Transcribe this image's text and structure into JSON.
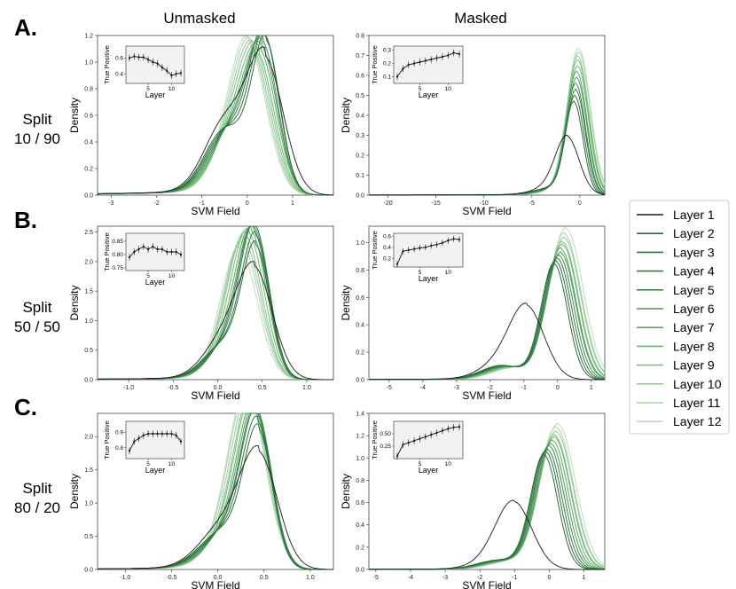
{
  "figure": {
    "col_titles": [
      "Unmasked",
      "Masked"
    ],
    "row_letters": [
      "A.",
      "B.",
      "C."
    ],
    "row_split_word": "Split",
    "row_ratios": [
      "10 / 90",
      "50 / 50",
      "80 / 20"
    ]
  },
  "legend": {
    "entries": [
      "Layer 1",
      "Layer 2",
      "Layer 3",
      "Layer 4",
      "Layer 5",
      "Layer 6",
      "Layer 7",
      "Layer 8",
      "Layer 9",
      "Layer 10",
      "Layer 11",
      "Layer 12"
    ],
    "colors": [
      "#1a1a1a",
      "#2d6a3e",
      "#2f7241",
      "#357a45",
      "#3d8a4c",
      "#4a9956",
      "#5aa862",
      "#6cb471",
      "#80bf84",
      "#95c998",
      "#a9d3ab",
      "#bddcbe"
    ]
  },
  "chart_data": [
    {
      "id": "A-unmasked",
      "type": "line",
      "xlabel": "SVM Field",
      "ylabel": "Density",
      "xlim": [
        -3.3,
        1.9
      ],
      "ylim": [
        0,
        1.2
      ],
      "xticks": [
        -3,
        -2,
        -1,
        0,
        1
      ],
      "yticks": [
        0.0,
        0.2,
        0.4,
        0.6,
        0.8,
        1.0,
        1.2
      ],
      "peaks": {
        "main_x": [
          0.4,
          0.42,
          0.4,
          0.38,
          0.35,
          0.33,
          0.3,
          0.25,
          0.2,
          0.15,
          0.1,
          0.05
        ],
        "main_y": [
          0.98,
          1.1,
          1.12,
          1.13,
          1.05,
          1.0,
          0.95,
          0.9,
          0.88,
          0.86,
          0.85,
          0.84
        ],
        "width": 0.3,
        "shoulder_x": -0.5,
        "shoulder_y": 0.47,
        "shoulder_w": 0.45,
        "tail": 2.2
      },
      "inset": {
        "xlabel": "Layer",
        "ylabel": "True Positive",
        "xticks": [
          5,
          10
        ],
        "yticks": [
          0.4,
          0.6
        ],
        "ylim": [
          0.28,
          0.75
        ],
        "values": [
          0.6,
          0.62,
          0.61,
          0.61,
          0.58,
          0.55,
          0.53,
          0.48,
          0.44,
          0.38,
          0.4,
          0.41
        ]
      }
    },
    {
      "id": "A-masked",
      "type": "line",
      "xlabel": "SVM Field",
      "ylabel": "Density",
      "xlim": [
        -22,
        2.6
      ],
      "ylim": [
        0,
        0.8
      ],
      "xticks": [
        -20,
        -15,
        -10,
        -5,
        0
      ],
      "yticks": [
        0.0,
        0.1,
        0.2,
        0.3,
        0.4,
        0.5,
        0.6,
        0.7,
        0.8
      ],
      "peaks": {
        "main_x": [
          -1.3,
          -0.6,
          -0.5,
          -0.4,
          -0.4,
          -0.3,
          -0.3,
          -0.2,
          -0.2,
          -0.2,
          -0.1,
          -0.1
        ],
        "main_y": [
          0.26,
          0.44,
          0.47,
          0.5,
          0.53,
          0.56,
          0.59,
          0.62,
          0.65,
          0.67,
          0.69,
          0.71
        ],
        "width": 0.9,
        "shoulder_x": -2.5,
        "shoulder_y": 0.04,
        "shoulder_w": 2.0,
        "tail": 8
      },
      "inset": {
        "xlabel": "Layer",
        "ylabel": "True Positive",
        "xticks": [
          5,
          10
        ],
        "yticks": [
          0.1,
          0.2,
          0.3
        ],
        "ylim": [
          0.05,
          0.33
        ],
        "values": [
          0.1,
          0.16,
          0.19,
          0.2,
          0.21,
          0.22,
          0.23,
          0.24,
          0.25,
          0.26,
          0.28,
          0.27
        ]
      }
    },
    {
      "id": "B-unmasked",
      "type": "line",
      "xlabel": "SVM Field",
      "ylabel": "Density",
      "xlim": [
        -1.35,
        1.3
      ],
      "ylim": [
        0,
        2.6
      ],
      "xticks": [
        -1.0,
        -0.5,
        0.0,
        0.5,
        1.0
      ],
      "yticks": [
        0.0,
        0.5,
        1.0,
        1.5,
        2.0,
        2.5
      ],
      "peaks": {
        "main_x": [
          0.42,
          0.43,
          0.43,
          0.42,
          0.41,
          0.4,
          0.38,
          0.35,
          0.32,
          0.3,
          0.28,
          0.25
        ],
        "main_y": [
          1.78,
          2.15,
          2.3,
          2.45,
          2.4,
          2.35,
          2.28,
          2.2,
          2.1,
          2.0,
          1.9,
          1.8
        ],
        "width": 0.15,
        "shoulder_x": 0.05,
        "shoulder_y": 0.55,
        "shoulder_w": 0.22,
        "tail": 0.9
      },
      "inset": {
        "xlabel": "Layer",
        "ylabel": "True Positive",
        "xticks": [
          5,
          10
        ],
        "yticks": [
          0.75,
          0.8,
          0.85
        ],
        "ylim": [
          0.74,
          0.88
        ],
        "values": [
          0.79,
          0.81,
          0.82,
          0.83,
          0.82,
          0.83,
          0.82,
          0.82,
          0.81,
          0.81,
          0.81,
          0.8
        ]
      }
    },
    {
      "id": "B-masked",
      "type": "line",
      "xlabel": "SVM Field",
      "ylabel": "Density",
      "xlim": [
        -5.6,
        1.4
      ],
      "ylim": [
        0,
        1.12
      ],
      "xticks": [
        -5,
        -4,
        -3,
        -2,
        -1,
        0,
        1
      ],
      "yticks": [
        0.0,
        0.2,
        0.4,
        0.6,
        0.8,
        1.0
      ],
      "peaks": {
        "main_x": [
          -0.9,
          -0.1,
          -0.05,
          0.0,
          0.05,
          0.1,
          0.1,
          0.15,
          0.15,
          0.2,
          0.2,
          0.25
        ],
        "main_y": [
          0.5,
          0.84,
          0.86,
          0.88,
          0.9,
          0.92,
          0.95,
          0.98,
          1.0,
          1.03,
          1.06,
          1.1
        ],
        "width": 0.38,
        "shoulder_x": -1.7,
        "shoulder_y": 0.1,
        "shoulder_w": 0.6,
        "tail": 2.5
      },
      "inset": {
        "xlabel": "Layer",
        "ylabel": "True Positive",
        "xticks": [
          5,
          10
        ],
        "yticks": [
          0.2,
          0.4,
          0.6
        ],
        "ylim": [
          0.05,
          0.65
        ],
        "values": [
          0.1,
          0.33,
          0.35,
          0.37,
          0.39,
          0.4,
          0.43,
          0.45,
          0.48,
          0.52,
          0.55,
          0.54
        ]
      }
    },
    {
      "id": "C-unmasked",
      "type": "line",
      "xlabel": "SVM Field",
      "ylabel": "Density",
      "xlim": [
        -1.3,
        1.25
      ],
      "ylim": [
        0,
        2.35
      ],
      "xticks": [
        -1.0,
        -0.5,
        0.0,
        0.5,
        1.0
      ],
      "yticks": [
        0.0,
        0.5,
        1.0,
        1.5,
        2.0
      ],
      "peaks": {
        "main_x": [
          0.45,
          0.44,
          0.43,
          0.42,
          0.42,
          0.41,
          0.4,
          0.38,
          0.37,
          0.35,
          0.33,
          0.32
        ],
        "main_y": [
          1.62,
          1.95,
          2.05,
          2.15,
          2.2,
          2.22,
          2.25,
          2.27,
          2.28,
          2.29,
          2.3,
          2.3
        ],
        "width": 0.15,
        "shoulder_x": 0.05,
        "shoulder_y": 0.55,
        "shoulder_w": 0.25,
        "tail": 0.9
      },
      "inset": {
        "xlabel": "Layer",
        "ylabel": "True Positive",
        "xticks": [
          5,
          10
        ],
        "yticks": [
          0.8,
          0.9
        ],
        "ylim": [
          0.73,
          0.97
        ],
        "values": [
          0.78,
          0.84,
          0.86,
          0.88,
          0.89,
          0.89,
          0.89,
          0.89,
          0.89,
          0.89,
          0.88,
          0.84
        ]
      }
    },
    {
      "id": "C-masked",
      "type": "line",
      "xlabel": "SVM Field",
      "ylabel": "Density",
      "xlim": [
        -5.2,
        1.6
      ],
      "ylim": [
        0,
        1.4
      ],
      "xticks": [
        -5,
        -4,
        -3,
        -2,
        -1,
        0,
        1
      ],
      "yticks": [
        0.0,
        0.2,
        0.4,
        0.6,
        0.8,
        1.0,
        1.2,
        1.4
      ],
      "peaks": {
        "main_x": [
          -1.0,
          -0.15,
          -0.1,
          -0.05,
          0.0,
          0.05,
          0.1,
          0.15,
          0.15,
          0.2,
          0.2,
          0.25
        ],
        "main_y": [
          0.55,
          1.02,
          1.05,
          1.07,
          1.1,
          1.12,
          1.15,
          1.18,
          1.2,
          1.23,
          1.27,
          1.3
        ],
        "width": 0.38,
        "shoulder_x": -1.5,
        "shoulder_y": 0.08,
        "shoulder_w": 0.6,
        "tail": 2.5
      },
      "inset": {
        "xlabel": "Layer",
        "ylabel": "True Positive",
        "xticks": [
          5,
          10
        ],
        "yticks": [
          0.25,
          0.5
        ],
        "ylim": [
          0.0,
          0.75
        ],
        "values": [
          0.05,
          0.28,
          0.32,
          0.36,
          0.4,
          0.44,
          0.48,
          0.52,
          0.56,
          0.6,
          0.63,
          0.64
        ]
      }
    }
  ]
}
